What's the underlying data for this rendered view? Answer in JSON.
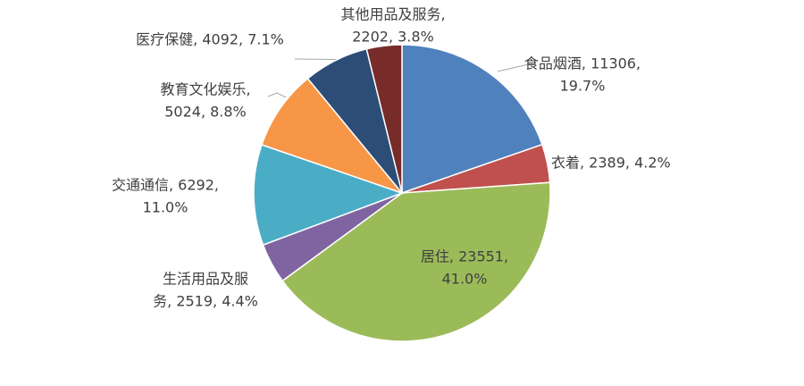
{
  "chart_data": {
    "type": "pie",
    "values": [
      11306,
      2389,
      23551,
      2519,
      6292,
      5024,
      4092,
      2202
    ],
    "labels": [
      [
        "食品烟酒, 11306,",
        "19.7%"
      ],
      [
        "衣着, 2389, 4.2%"
      ],
      [
        "居住, 23551,",
        "41.0%"
      ],
      [
        "生活用品及服",
        "务, 2519, 4.4%"
      ],
      [
        "交通通信, 6292,",
        "11.0%"
      ],
      [
        "教育文化娱乐,",
        "5024, 8.8%"
      ],
      [
        "医疗保健, 4092, 7.1%"
      ],
      [
        "其他用品及服务,",
        "2202, 3.8%"
      ]
    ],
    "colors": [
      "#4f81bd",
      "#c0504d",
      "#9bbb59",
      "#8064a2",
      "#4bacc6",
      "#f79646",
      "#2c4d75",
      "#772c2a"
    ]
  }
}
